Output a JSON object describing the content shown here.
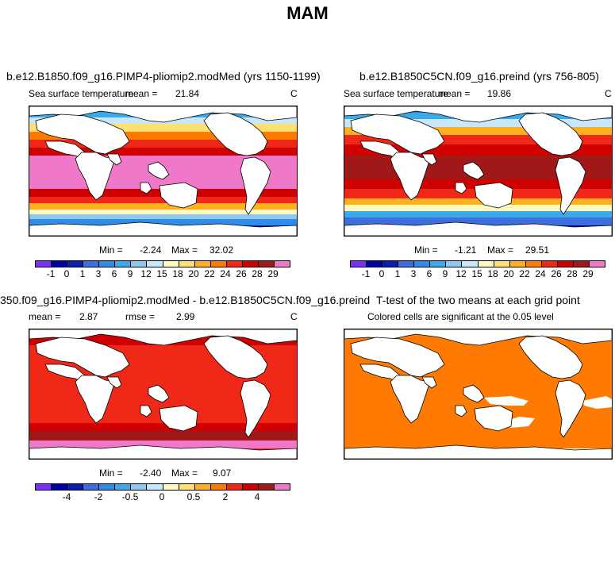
{
  "page_title": "MAM",
  "panels": [
    {
      "title": "b.e12.B1850.f09_g16.PIMP4-pliomip2.modMed (yrs 1150-1199)",
      "subtitle": "Sea surface temperature",
      "stat_label": "mean =",
      "stat_value": "21.84",
      "units": "C",
      "minmax_label": "Min =",
      "min": "-2.24",
      "max_label": "Max =",
      "max": "32.02"
    },
    {
      "title": "b.e12.B1850C5CN.f09_g16.preind (yrs 756-805)",
      "subtitle": "Sea surface temperature",
      "stat_label": "mean =",
      "stat_value": "19.86",
      "units": "C",
      "minmax_label": "Min =",
      "min": "-1.21",
      "max_label": "Max =",
      "max": "29.51"
    },
    {
      "title": "350.f09_g16.PIMP4-pliomip2.modMed - b.e12.B1850C5CN.f09_g16.preind",
      "stat_label": "mean =",
      "stat_value": "2.87",
      "stat2_label": "rmse =",
      "stat2_value": "2.99",
      "units": "C",
      "minmax_label": "Min =",
      "min": "-2.40",
      "max_label": "Max =",
      "max": "9.07"
    },
    {
      "title": "T-test of the two means at each grid point",
      "subtitle": "Colored cells are significant at the 0.05 level"
    }
  ],
  "colorbars": {
    "sst_colors": [
      "#7b2ff7",
      "#0000a8",
      "#0a1fb0",
      "#3d6ee0",
      "#2f8ce8",
      "#3aaae8",
      "#8ec8f0",
      "#c6e8fa",
      "#fffbbf",
      "#ffe070",
      "#ffb020",
      "#ff7a00",
      "#f02818",
      "#d00000",
      "#a01818",
      "#f078c8"
    ],
    "sst_labels": [
      "-1",
      "0",
      "1",
      "3",
      "6",
      "9",
      "12",
      "15",
      "18",
      "20",
      "22",
      "24",
      "26",
      "28",
      "29"
    ],
    "diff_colors": [
      "#7b2ff7",
      "#0000a8",
      "#0a1fb0",
      "#3d6ee0",
      "#2f8ce8",
      "#3aaae8",
      "#8ec8f0",
      "#c6e8fa",
      "#fffbbf",
      "#ffe070",
      "#ffb020",
      "#ff7a00",
      "#f02818",
      "#d00000",
      "#a01818",
      "#f078c8"
    ],
    "diff_labels": [
      "-4",
      "-2",
      "-0.5",
      "0",
      "0.5",
      "2",
      "4"
    ]
  },
  "colors": {
    "ttest_fill": "#ff7a00",
    "land": "#ffffff"
  }
}
